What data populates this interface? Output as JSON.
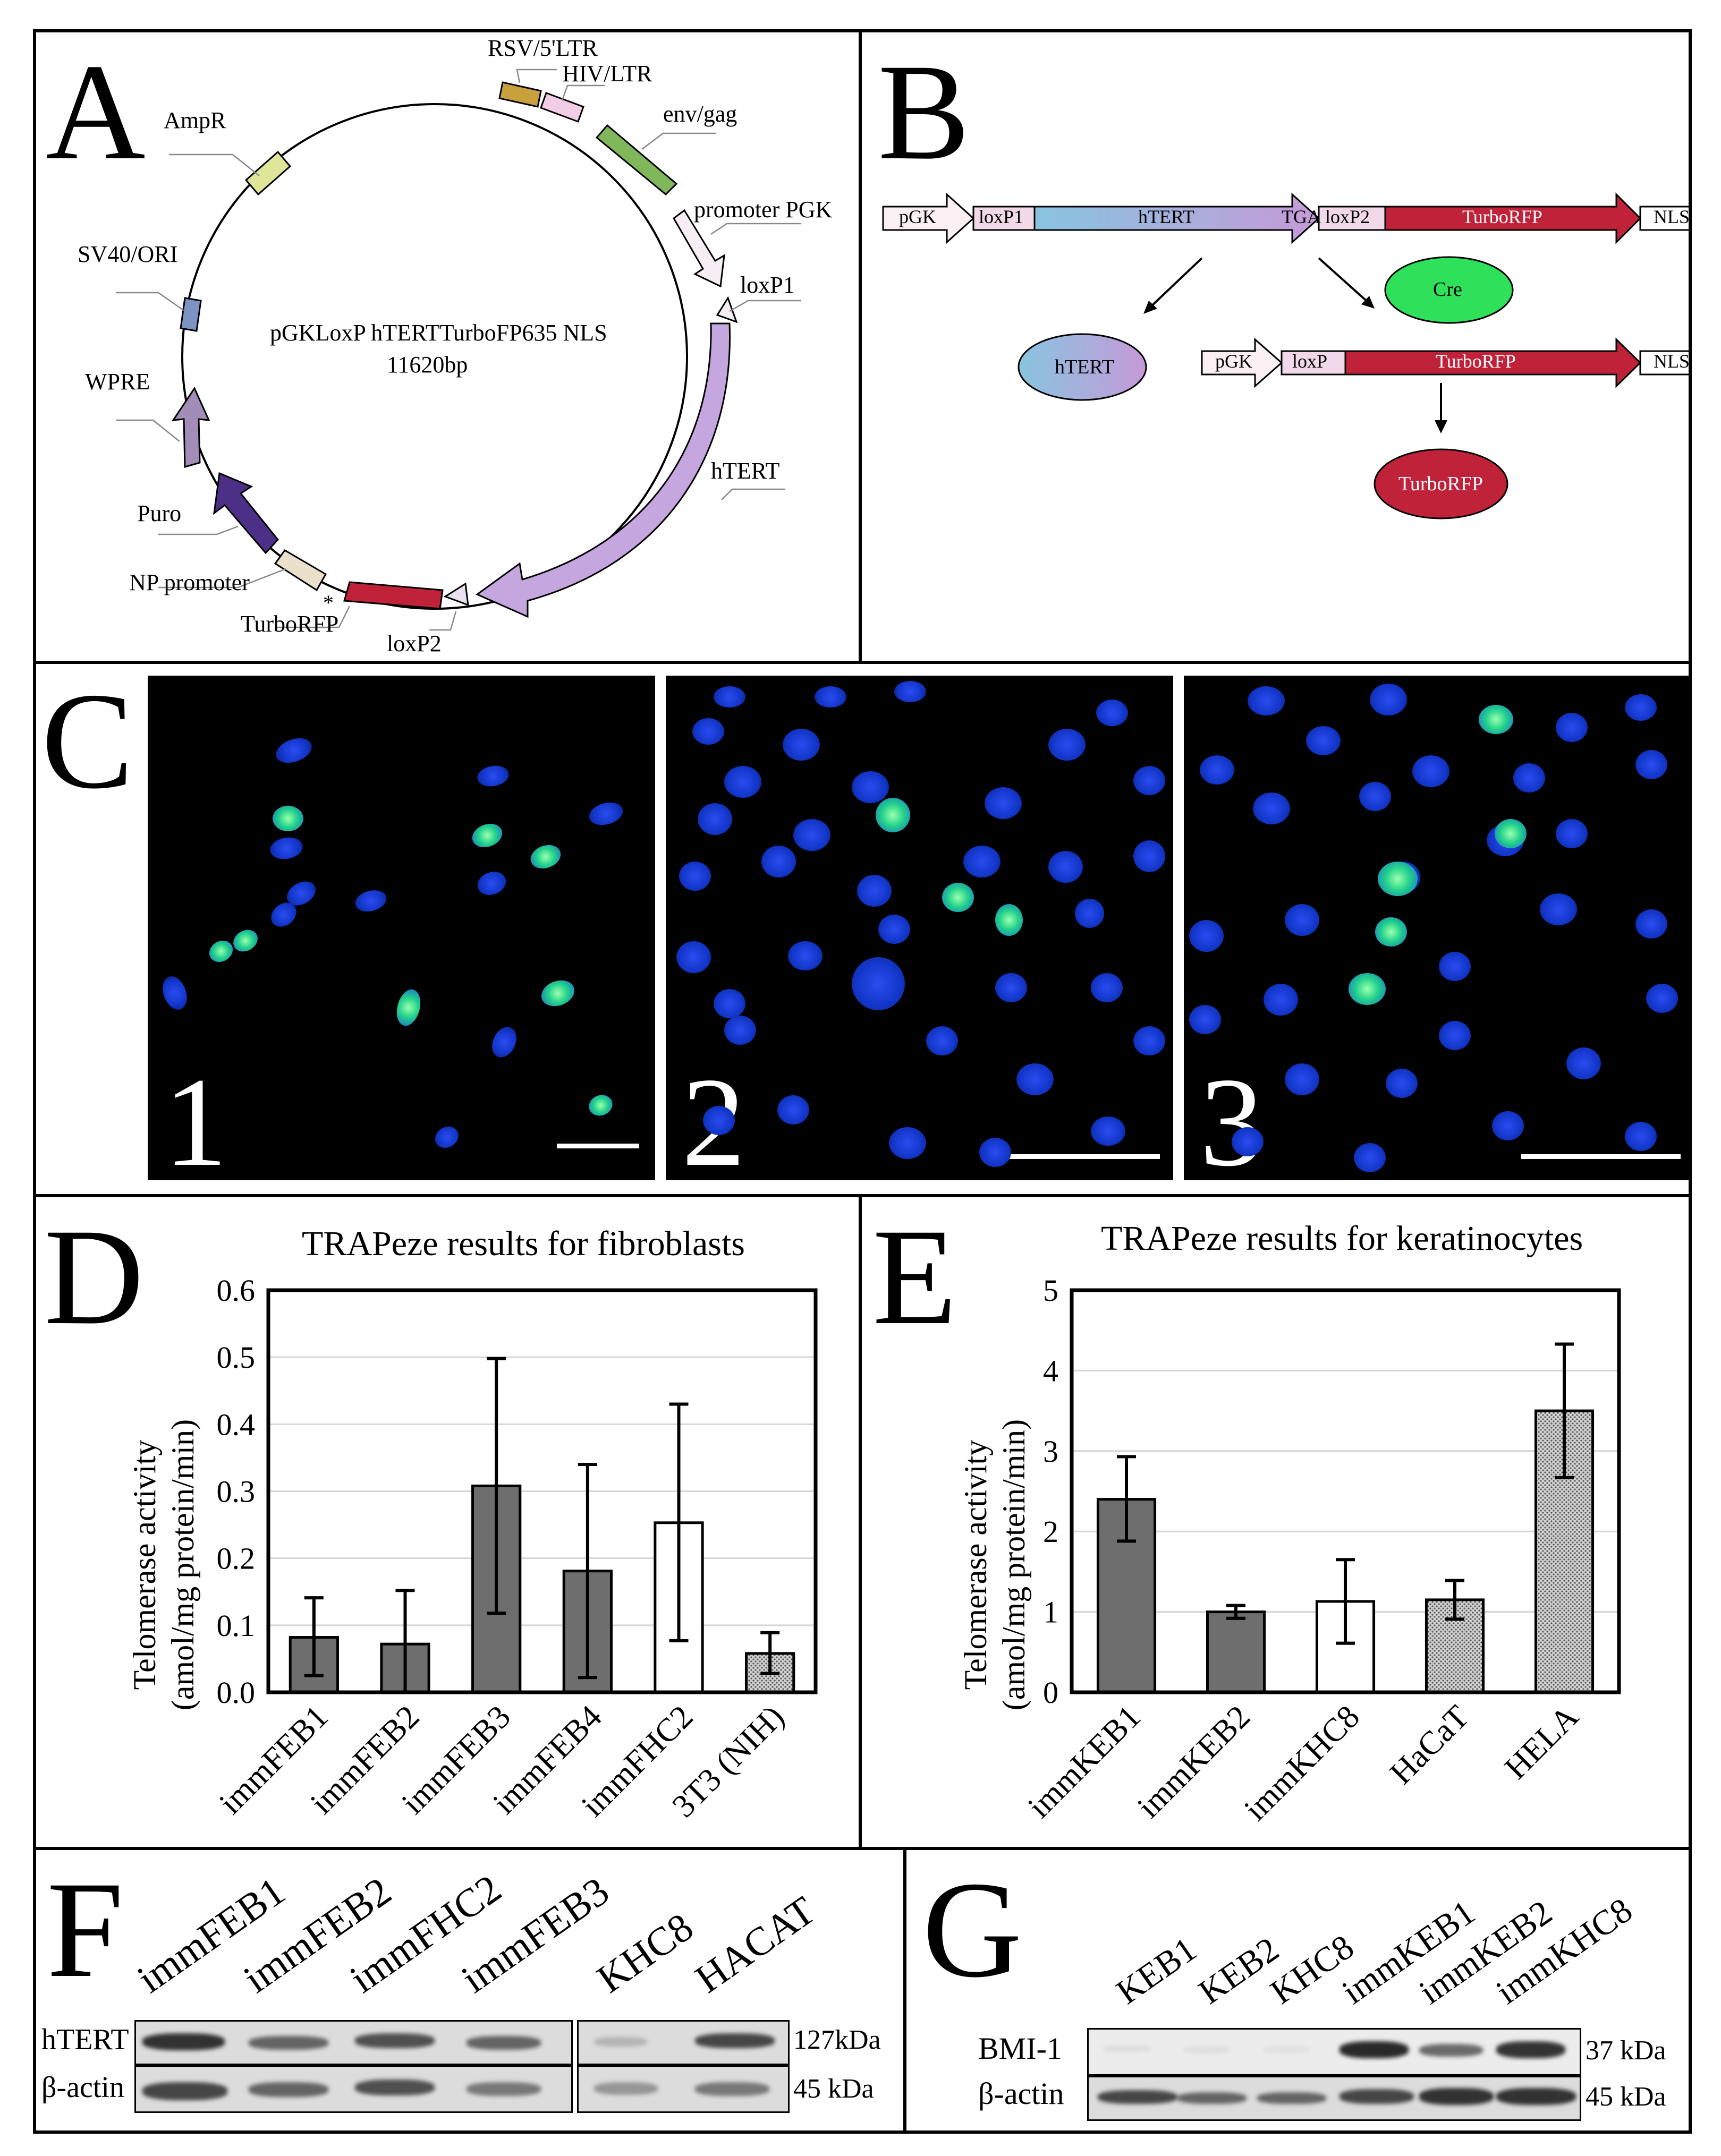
{
  "panels": {
    "A": {
      "letter": "A",
      "plasmid_name": "pGKLoxP hTERTTurboFP635 NLS",
      "plasmid_size": "11620bp",
      "features": [
        {
          "label": "RSV/5'LTR",
          "color": "#c9a13c"
        },
        {
          "label": "HIV/LTR",
          "color": "#f1cde6"
        },
        {
          "label": "env/gag",
          "color": "#7fb75a"
        },
        {
          "label": "promoter PGK",
          "color": "#f6eef4"
        },
        {
          "label": "loxP1",
          "color": "#f4eef4"
        },
        {
          "label": "hTERT",
          "color": "#b7a3d9"
        },
        {
          "label": "loxP2",
          "color": "#e8e0ec"
        },
        {
          "label": "TurboRFP",
          "color": "#c0223a"
        },
        {
          "label": "*",
          "color": "#000000"
        },
        {
          "label": "NP promoter",
          "color": "#ebe0cc"
        },
        {
          "label": "Puro",
          "color": "#4c2f86"
        },
        {
          "label": "WPRE",
          "color": "#a28cb8"
        },
        {
          "label": "SV40/ORI",
          "color": "#7c93c4"
        },
        {
          "label": "AmpR",
          "color": "#dfe69a"
        }
      ]
    },
    "B": {
      "letter": "B",
      "construct1": [
        "pGK",
        "loxP1",
        "hTERT",
        "TGA",
        "loxP2",
        "TurboRFP",
        "NLS"
      ],
      "construct2": [
        "pGK",
        "loxP",
        "TurboRFP",
        "NLS"
      ],
      "cre": "Cre",
      "product_htert": "hTERT",
      "product_turborfp": "TurboRFP"
    },
    "C": {
      "letter": "C",
      "images": [
        "1",
        "2",
        "3"
      ]
    },
    "D": {
      "letter": "D",
      "chart_title": "TRAPeze results for fibroblasts",
      "ylabel_line1": "Telomerase activity",
      "ylabel_line2": "(amol/mg protein/min)"
    },
    "E": {
      "letter": "E",
      "chart_title": "TRAPeze results for keratinocytes",
      "ylabel_line1": "Telomerase activity",
      "ylabel_line2": "(amol/mg protein/min)"
    },
    "F": {
      "letter": "F",
      "lanes": [
        "immFEB1",
        "immFEB2",
        "immFHC2",
        "immFEB3",
        "KHC8",
        "HACAT"
      ],
      "rows": [
        "hTERT",
        "β-actin"
      ],
      "sizes": [
        "127kDa",
        "45 kDa"
      ]
    },
    "G": {
      "letter": "G",
      "lanes": [
        "KEB1",
        "KEB2",
        "KHC8",
        "immKEB1",
        "immKEB2",
        "immKHC8"
      ],
      "rows": [
        "BMI-1",
        "β-actin"
      ],
      "sizes": [
        "37 kDa",
        "45 kDa"
      ]
    }
  },
  "chart_data": [
    {
      "type": "bar",
      "title": "TRAPeze results for fibroblasts",
      "xlabel": "",
      "ylabel": "Telomerase activity (amol/mg protein/min)",
      "categories": [
        "immFEB1",
        "immFEB2",
        "immFEB3",
        "immFEB4",
        "immFHC2",
        "3T3 (NIH)"
      ],
      "values": [
        0.082,
        0.072,
        0.308,
        0.181,
        0.253,
        0.058
      ],
      "error_low": [
        0.025,
        0.0,
        0.118,
        0.022,
        0.077,
        0.028
      ],
      "error_high": [
        0.141,
        0.152,
        0.498,
        0.34,
        0.43,
        0.089
      ],
      "bar_colors": [
        "#6e6e6e",
        "#6e6e6e",
        "#6e6e6e",
        "#6e6e6e",
        "#ffffff",
        "#b5b5b5"
      ],
      "ylim": [
        0,
        0.6
      ],
      "yticks": [
        "0.0",
        "0.1",
        "0.2",
        "0.3",
        "0.4",
        "0.5",
        "0.6"
      ],
      "grid": true
    },
    {
      "type": "bar",
      "title": "TRAPeze results for keratinocytes",
      "xlabel": "",
      "ylabel": "Telomerase activity (amol/mg protein/min)",
      "categories": [
        "immKEB1",
        "immKEB2",
        "immKHC8",
        "HaCaT",
        "HELA"
      ],
      "values": [
        2.4,
        1.0,
        1.13,
        1.15,
        3.5
      ],
      "error_low": [
        1.88,
        0.92,
        0.61,
        0.91,
        2.67
      ],
      "error_high": [
        2.93,
        1.08,
        1.65,
        1.39,
        4.33
      ],
      "bar_colors": [
        "#6e6e6e",
        "#6e6e6e",
        "#ffffff",
        "#b5b5b5",
        "#b5b5b5"
      ],
      "ylim": [
        0,
        5
      ],
      "yticks": [
        "0",
        "1",
        "2",
        "3",
        "4",
        "5"
      ],
      "grid": true
    }
  ]
}
